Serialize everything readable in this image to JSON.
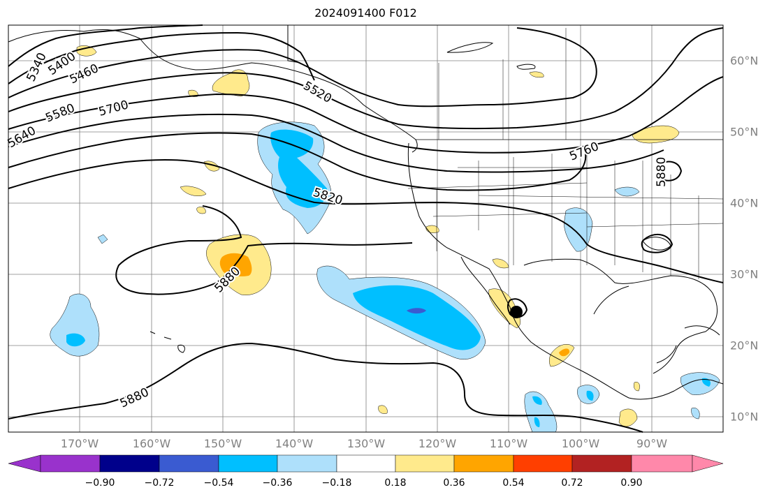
{
  "title": "2024091400 F012",
  "lon_labels": [
    "170°W",
    "160°W",
    "150°W",
    "140°W",
    "130°W",
    "120°W",
    "110°W",
    "100°W",
    "90°W"
  ],
  "lat_labels": [
    "60°N",
    "50°N",
    "40°N",
    "30°N",
    "20°N",
    "10°N"
  ],
  "contour_labels": [
    "5340",
    "5400",
    "5460",
    "5520",
    "5580",
    "5640",
    "5700",
    "5760",
    "5820",
    "5880",
    "5880",
    "5880"
  ],
  "colorbar": {
    "ticks": [
      "−0.90",
      "−0.72",
      "−0.54",
      "−0.36",
      "−0.18",
      "0.18",
      "0.36",
      "0.54",
      "0.72",
      "0.90"
    ],
    "colors": [
      "#9932cc",
      "#00008b",
      "#3a5bd1",
      "#00bfff",
      "#aee0fb",
      "#ffffff",
      "#ffea8c",
      "#ffa500",
      "#ff3f00",
      "#b22222",
      "#ff88aa"
    ]
  },
  "fill_colors": {
    "light_blue": "#aee0fb",
    "blue": "#00bfff",
    "medium_blue": "#3a5bd1",
    "yellow": "#ffea8c",
    "orange": "#ffa500"
  },
  "marker": "storm-center-dot"
}
